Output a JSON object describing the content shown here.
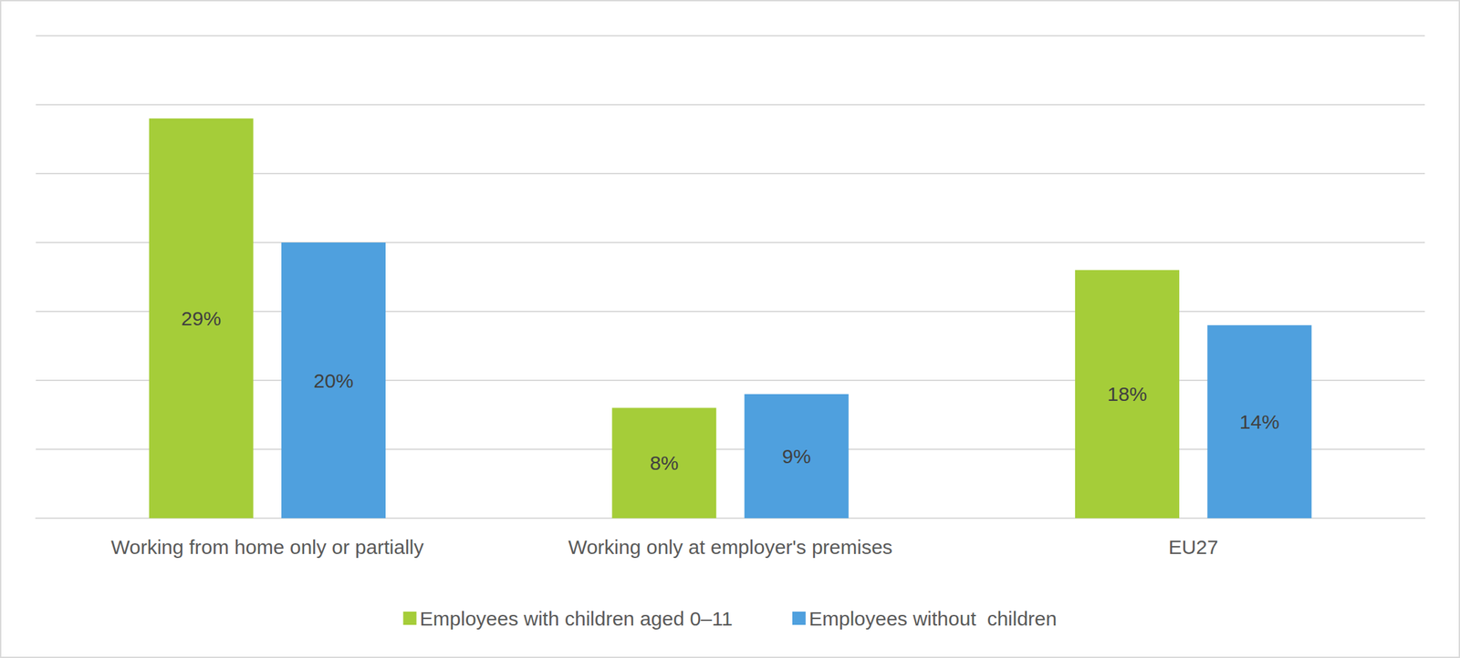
{
  "chart_data": {
    "type": "bar",
    "categories": [
      "Working from home only or partially",
      "Working only at employer's premises",
      "EU27"
    ],
    "series": [
      {
        "name": "Employees with children aged 0–11",
        "color": "#a5cd39",
        "values": [
          29,
          8,
          18
        ],
        "value_labels": [
          "29%",
          "8%",
          "18%"
        ]
      },
      {
        "name": "Employees without  children",
        "color": "#4fa0de",
        "values": [
          20,
          9,
          14
        ],
        "value_labels": [
          "20%",
          "9%",
          "14%"
        ]
      }
    ],
    "ylim": [
      0,
      35
    ],
    "yticks": [
      0,
      5,
      10,
      15,
      20,
      25,
      30,
      35
    ],
    "grid": true,
    "legend": "bottom",
    "data_labels": true,
    "tick_labels": "x"
  }
}
